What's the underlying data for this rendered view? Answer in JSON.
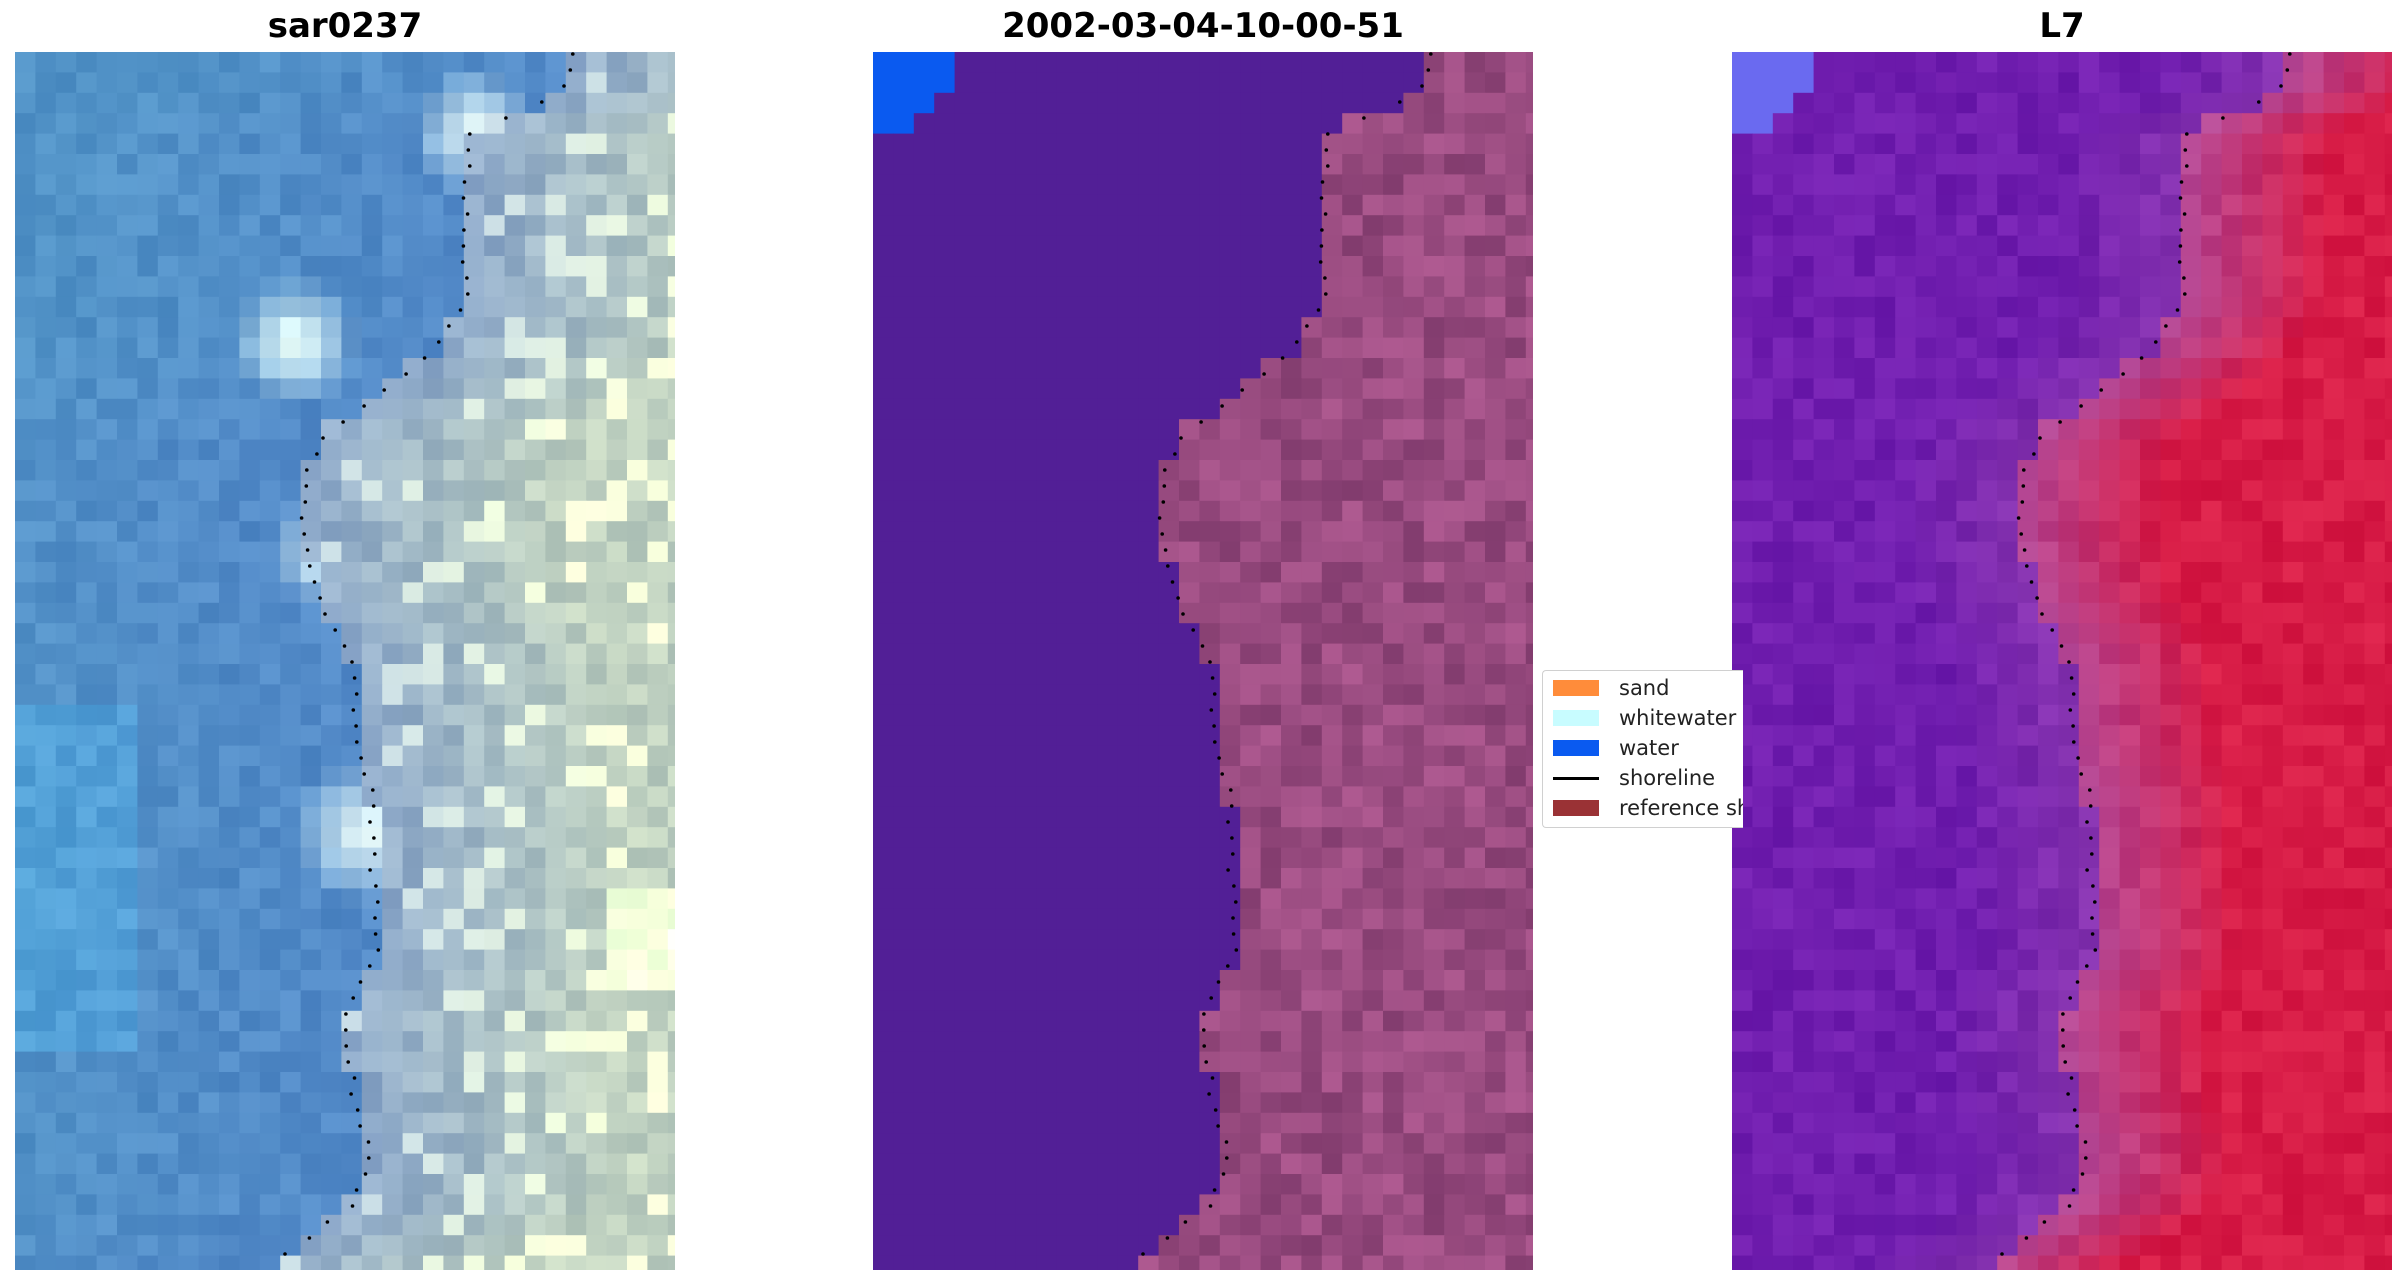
{
  "panels": [
    {
      "title": "sar0237",
      "render": "rgb"
    },
    {
      "title": "2002-03-04-10-00-51",
      "render": "classification"
    },
    {
      "title": "L7",
      "render": "index"
    }
  ],
  "legend": {
    "items": [
      {
        "label": "sand",
        "color": "#ff8c3a",
        "kind": "patch"
      },
      {
        "label": "whitewater",
        "color": "#c8fcff",
        "kind": "patch"
      },
      {
        "label": "water",
        "color": "#0a5af0",
        "kind": "patch"
      },
      {
        "label": "shoreline",
        "color": "#000000",
        "kind": "line"
      },
      {
        "label": "reference shoreline",
        "color": "#9a3235",
        "kind": "patch"
      }
    ]
  },
  "colors": {
    "sea_rgb": "#4a82c4",
    "land_rgb": "#b8c8d8",
    "water_class": "#521f96",
    "water_bright": "#0a5af0",
    "land_class": "#9a4a80",
    "index_low": "#6a1aa8",
    "index_high": "#c8083a"
  }
}
